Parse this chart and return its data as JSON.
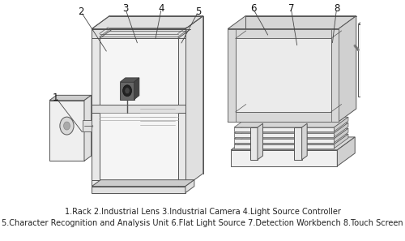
{
  "caption_line1": "1.Rack 2.Industrial Lens 3.Industrial Camera 4.Light Source Controller",
  "caption_line2": "5.Character Recognition and Analysis Unit 6.Flat Light Source 7.Detection Workbench 8.Touch Screen",
  "caption_fontsize": 7.0,
  "caption_color": "#222222",
  "bg_color": "#ffffff",
  "fig_width": 5.0,
  "fig_height": 2.97,
  "dpi": 100,
  "label_fontsize": 8.5,
  "line_color": "#555555",
  "fill_light": "#f5f5f5",
  "fill_mid": "#e0e0e0",
  "fill_dark": "#cccccc"
}
